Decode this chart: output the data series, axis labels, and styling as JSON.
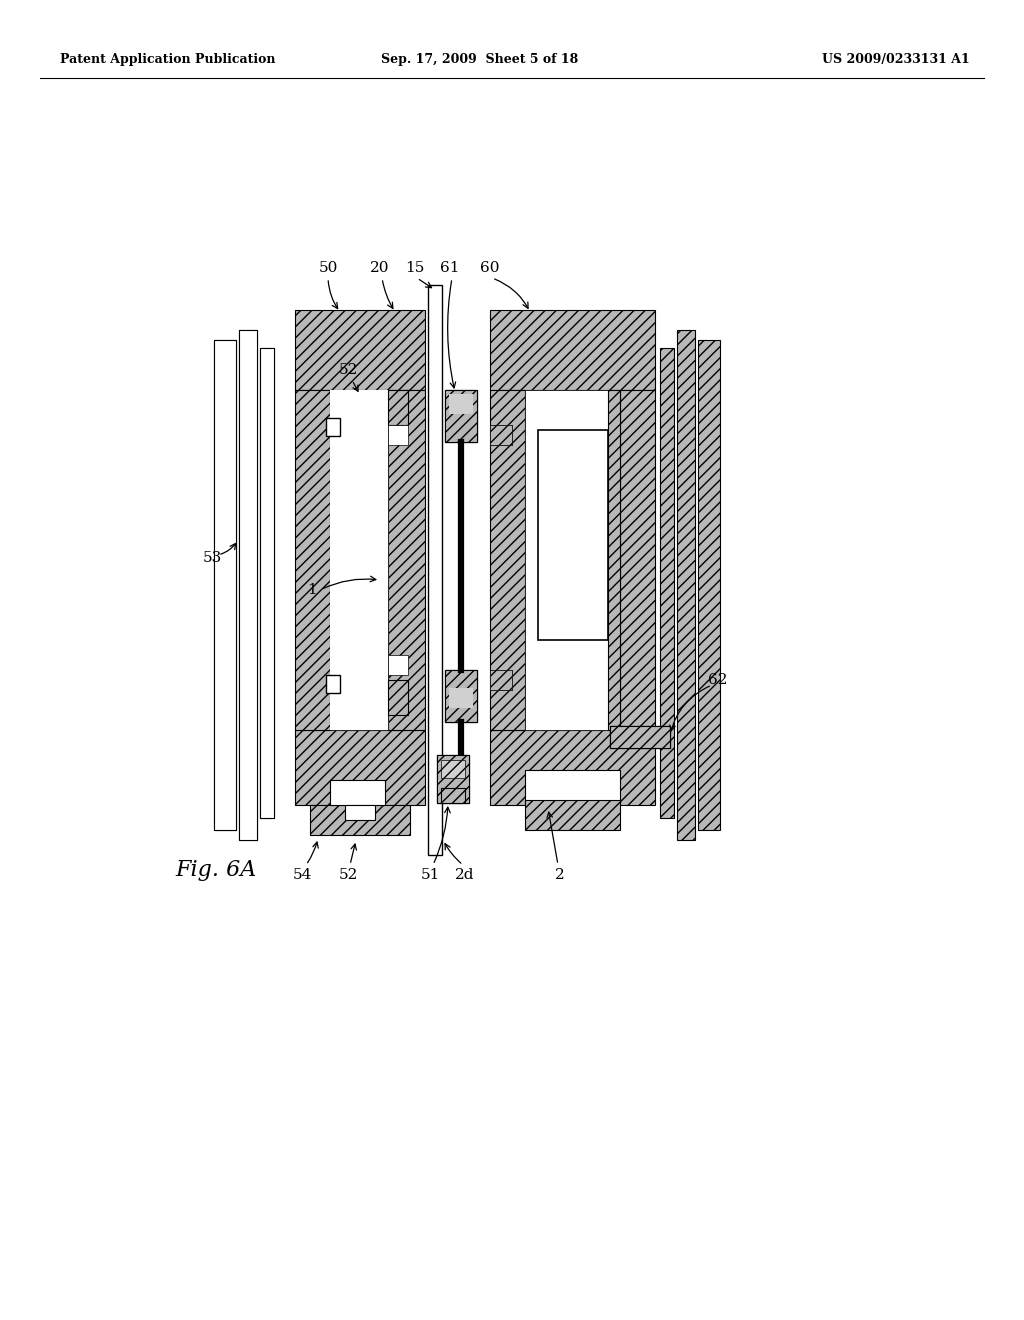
{
  "background_color": "#ffffff",
  "header_left": "Patent Application Publication",
  "header_center": "Sep. 17, 2009  Sheet 5 of 18",
  "header_right": "US 2009/0233131 A1",
  "figure_label": "Fig. 6A",
  "hatch_color": "#444444",
  "line_color": "#000000"
}
